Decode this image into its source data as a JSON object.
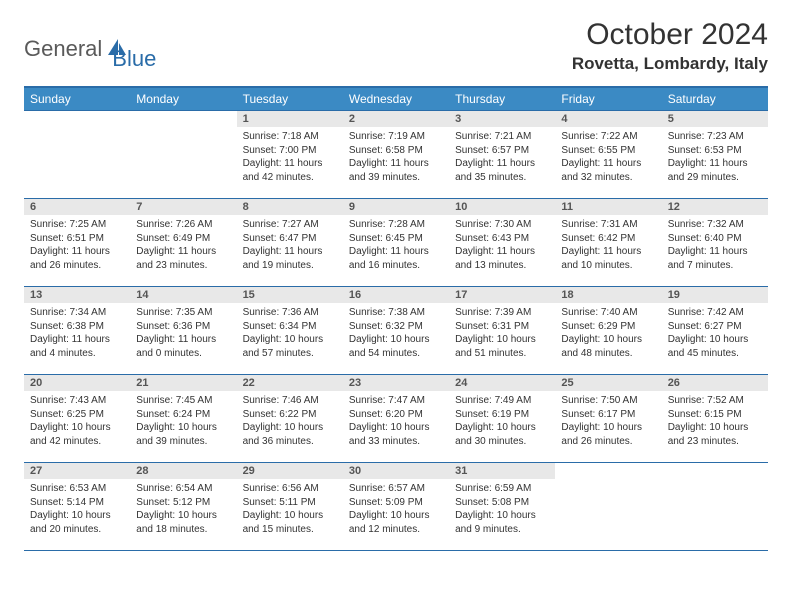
{
  "brand": {
    "part1": "General",
    "part2": "Blue"
  },
  "title": {
    "month": "October 2024",
    "location": "Rovetta, Lombardy, Italy"
  },
  "header_bg": "#3b8ac4",
  "divider_color": "#2a6ca8",
  "daynum_bg": "#e8e8e8",
  "font_family": "Arial",
  "day_headers": [
    "Sunday",
    "Monday",
    "Tuesday",
    "Wednesday",
    "Thursday",
    "Friday",
    "Saturday"
  ],
  "weeks": [
    [
      {
        "n": "",
        "sr": "",
        "ss": "",
        "dl": ""
      },
      {
        "n": "",
        "sr": "",
        "ss": "",
        "dl": ""
      },
      {
        "n": "1",
        "sr": "Sunrise: 7:18 AM",
        "ss": "Sunset: 7:00 PM",
        "dl": "Daylight: 11 hours and 42 minutes."
      },
      {
        "n": "2",
        "sr": "Sunrise: 7:19 AM",
        "ss": "Sunset: 6:58 PM",
        "dl": "Daylight: 11 hours and 39 minutes."
      },
      {
        "n": "3",
        "sr": "Sunrise: 7:21 AM",
        "ss": "Sunset: 6:57 PM",
        "dl": "Daylight: 11 hours and 35 minutes."
      },
      {
        "n": "4",
        "sr": "Sunrise: 7:22 AM",
        "ss": "Sunset: 6:55 PM",
        "dl": "Daylight: 11 hours and 32 minutes."
      },
      {
        "n": "5",
        "sr": "Sunrise: 7:23 AM",
        "ss": "Sunset: 6:53 PM",
        "dl": "Daylight: 11 hours and 29 minutes."
      }
    ],
    [
      {
        "n": "6",
        "sr": "Sunrise: 7:25 AM",
        "ss": "Sunset: 6:51 PM",
        "dl": "Daylight: 11 hours and 26 minutes."
      },
      {
        "n": "7",
        "sr": "Sunrise: 7:26 AM",
        "ss": "Sunset: 6:49 PM",
        "dl": "Daylight: 11 hours and 23 minutes."
      },
      {
        "n": "8",
        "sr": "Sunrise: 7:27 AM",
        "ss": "Sunset: 6:47 PM",
        "dl": "Daylight: 11 hours and 19 minutes."
      },
      {
        "n": "9",
        "sr": "Sunrise: 7:28 AM",
        "ss": "Sunset: 6:45 PM",
        "dl": "Daylight: 11 hours and 16 minutes."
      },
      {
        "n": "10",
        "sr": "Sunrise: 7:30 AM",
        "ss": "Sunset: 6:43 PM",
        "dl": "Daylight: 11 hours and 13 minutes."
      },
      {
        "n": "11",
        "sr": "Sunrise: 7:31 AM",
        "ss": "Sunset: 6:42 PM",
        "dl": "Daylight: 11 hours and 10 minutes."
      },
      {
        "n": "12",
        "sr": "Sunrise: 7:32 AM",
        "ss": "Sunset: 6:40 PM",
        "dl": "Daylight: 11 hours and 7 minutes."
      }
    ],
    [
      {
        "n": "13",
        "sr": "Sunrise: 7:34 AM",
        "ss": "Sunset: 6:38 PM",
        "dl": "Daylight: 11 hours and 4 minutes."
      },
      {
        "n": "14",
        "sr": "Sunrise: 7:35 AM",
        "ss": "Sunset: 6:36 PM",
        "dl": "Daylight: 11 hours and 0 minutes."
      },
      {
        "n": "15",
        "sr": "Sunrise: 7:36 AM",
        "ss": "Sunset: 6:34 PM",
        "dl": "Daylight: 10 hours and 57 minutes."
      },
      {
        "n": "16",
        "sr": "Sunrise: 7:38 AM",
        "ss": "Sunset: 6:32 PM",
        "dl": "Daylight: 10 hours and 54 minutes."
      },
      {
        "n": "17",
        "sr": "Sunrise: 7:39 AM",
        "ss": "Sunset: 6:31 PM",
        "dl": "Daylight: 10 hours and 51 minutes."
      },
      {
        "n": "18",
        "sr": "Sunrise: 7:40 AM",
        "ss": "Sunset: 6:29 PM",
        "dl": "Daylight: 10 hours and 48 minutes."
      },
      {
        "n": "19",
        "sr": "Sunrise: 7:42 AM",
        "ss": "Sunset: 6:27 PM",
        "dl": "Daylight: 10 hours and 45 minutes."
      }
    ],
    [
      {
        "n": "20",
        "sr": "Sunrise: 7:43 AM",
        "ss": "Sunset: 6:25 PM",
        "dl": "Daylight: 10 hours and 42 minutes."
      },
      {
        "n": "21",
        "sr": "Sunrise: 7:45 AM",
        "ss": "Sunset: 6:24 PM",
        "dl": "Daylight: 10 hours and 39 minutes."
      },
      {
        "n": "22",
        "sr": "Sunrise: 7:46 AM",
        "ss": "Sunset: 6:22 PM",
        "dl": "Daylight: 10 hours and 36 minutes."
      },
      {
        "n": "23",
        "sr": "Sunrise: 7:47 AM",
        "ss": "Sunset: 6:20 PM",
        "dl": "Daylight: 10 hours and 33 minutes."
      },
      {
        "n": "24",
        "sr": "Sunrise: 7:49 AM",
        "ss": "Sunset: 6:19 PM",
        "dl": "Daylight: 10 hours and 30 minutes."
      },
      {
        "n": "25",
        "sr": "Sunrise: 7:50 AM",
        "ss": "Sunset: 6:17 PM",
        "dl": "Daylight: 10 hours and 26 minutes."
      },
      {
        "n": "26",
        "sr": "Sunrise: 7:52 AM",
        "ss": "Sunset: 6:15 PM",
        "dl": "Daylight: 10 hours and 23 minutes."
      }
    ],
    [
      {
        "n": "27",
        "sr": "Sunrise: 6:53 AM",
        "ss": "Sunset: 5:14 PM",
        "dl": "Daylight: 10 hours and 20 minutes."
      },
      {
        "n": "28",
        "sr": "Sunrise: 6:54 AM",
        "ss": "Sunset: 5:12 PM",
        "dl": "Daylight: 10 hours and 18 minutes."
      },
      {
        "n": "29",
        "sr": "Sunrise: 6:56 AM",
        "ss": "Sunset: 5:11 PM",
        "dl": "Daylight: 10 hours and 15 minutes."
      },
      {
        "n": "30",
        "sr": "Sunrise: 6:57 AM",
        "ss": "Sunset: 5:09 PM",
        "dl": "Daylight: 10 hours and 12 minutes."
      },
      {
        "n": "31",
        "sr": "Sunrise: 6:59 AM",
        "ss": "Sunset: 5:08 PM",
        "dl": "Daylight: 10 hours and 9 minutes."
      },
      {
        "n": "",
        "sr": "",
        "ss": "",
        "dl": ""
      },
      {
        "n": "",
        "sr": "",
        "ss": "",
        "dl": ""
      }
    ]
  ]
}
